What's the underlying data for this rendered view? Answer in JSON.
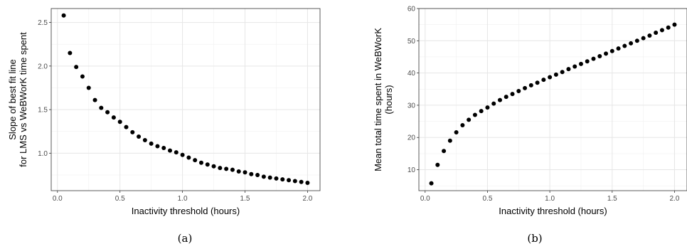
{
  "chart_data": [
    {
      "type": "scatter",
      "caption": "(a)",
      "xlabel": "Inactivity threshold (hours)",
      "ylabel": [
        "Slope of best fit line",
        "for LMS vs WeBWorK time spent"
      ],
      "xlim": [
        -0.05,
        2.1
      ],
      "ylim": [
        0.57,
        2.66
      ],
      "xticks": [
        0.0,
        0.5,
        1.0,
        1.5,
        2.0
      ],
      "xtick_labels": [
        "0.0",
        "0.5",
        "1.0",
        "1.5",
        "2.0"
      ],
      "yticks": [
        1.0,
        1.5,
        2.0,
        2.5
      ],
      "ytick_labels": [
        "1.0",
        "1.5",
        "2.0",
        "2.5"
      ],
      "grid": true,
      "point_color": "#000000",
      "x": [
        0.05,
        0.1,
        0.15,
        0.2,
        0.25,
        0.3,
        0.35,
        0.4,
        0.45,
        0.5,
        0.55,
        0.6,
        0.65,
        0.7,
        0.75,
        0.8,
        0.85,
        0.9,
        0.95,
        1.0,
        1.05,
        1.1,
        1.15,
        1.2,
        1.25,
        1.3,
        1.35,
        1.4,
        1.45,
        1.5,
        1.55,
        1.6,
        1.65,
        1.7,
        1.75,
        1.8,
        1.85,
        1.9,
        1.95,
        2.0
      ],
      "y": [
        2.58,
        2.15,
        1.99,
        1.88,
        1.75,
        1.61,
        1.52,
        1.47,
        1.41,
        1.36,
        1.3,
        1.24,
        1.19,
        1.15,
        1.11,
        1.08,
        1.06,
        1.03,
        1.01,
        0.98,
        0.95,
        0.92,
        0.89,
        0.87,
        0.85,
        0.83,
        0.82,
        0.81,
        0.79,
        0.78,
        0.76,
        0.75,
        0.73,
        0.72,
        0.71,
        0.7,
        0.69,
        0.68,
        0.67,
        0.66
      ]
    },
    {
      "type": "scatter",
      "caption": "(b)",
      "xlabel": "Inactivity threshold (hours)",
      "ylabel": [
        "Mean total time spent in WeBWorK",
        "(hours)"
      ],
      "xlim": [
        -0.05,
        2.1
      ],
      "ylim": [
        3.5,
        60
      ],
      "xticks": [
        0.0,
        0.5,
        1.0,
        1.5,
        2.0
      ],
      "xtick_labels": [
        "0.0",
        "0.5",
        "1.0",
        "1.5",
        "2.0"
      ],
      "yticks": [
        10,
        20,
        30,
        40,
        50,
        60
      ],
      "ytick_labels": [
        "10",
        "20",
        "30",
        "40",
        "50",
        "60"
      ],
      "grid": true,
      "point_color": "#000000",
      "x": [
        0.05,
        0.1,
        0.15,
        0.2,
        0.25,
        0.3,
        0.35,
        0.4,
        0.45,
        0.5,
        0.55,
        0.6,
        0.65,
        0.7,
        0.75,
        0.8,
        0.85,
        0.9,
        0.95,
        1.0,
        1.05,
        1.1,
        1.15,
        1.2,
        1.25,
        1.3,
        1.35,
        1.4,
        1.45,
        1.5,
        1.55,
        1.6,
        1.65,
        1.7,
        1.75,
        1.8,
        1.85,
        1.9,
        1.95,
        2.0
      ],
      "y": [
        5.8,
        11.5,
        15.8,
        19.0,
        21.6,
        23.8,
        25.5,
        27.0,
        28.2,
        29.3,
        30.5,
        31.6,
        32.6,
        33.5,
        34.4,
        35.3,
        36.2,
        37.0,
        37.9,
        38.7,
        39.5,
        40.3,
        41.2,
        42.0,
        42.8,
        43.6,
        44.4,
        45.2,
        46.0,
        46.8,
        47.6,
        48.4,
        49.2,
        50.0,
        50.8,
        51.6,
        52.5,
        53.3,
        54.1,
        55.0
      ]
    }
  ]
}
